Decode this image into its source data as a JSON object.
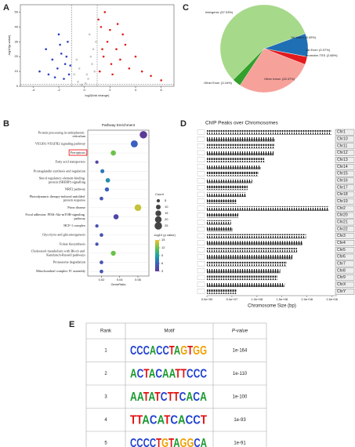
{
  "panel_labels": [
    "A",
    "B",
    "C",
    "D",
    "E"
  ],
  "chart_data": [
    {
      "type": "scatter",
      "x_label": "log2(fold change)",
      "y_label": "-log10(p-value)",
      "xlim": [
        -5,
        7
      ],
      "xticks": [
        -4,
        -2,
        0,
        2,
        4,
        6
      ],
      "ylim": [
        0,
        55
      ],
      "yticks": [
        0,
        10,
        20,
        30,
        40,
        50
      ],
      "vlines": [
        -1,
        1
      ],
      "hlines": [
        1.3
      ],
      "series": [
        {
          "color": "#c8c8c8",
          "x": [
            -0.5,
            0.3,
            0.8,
            -0.2,
            0.5,
            0.9,
            -0.8,
            0.1,
            0.6,
            -0.4,
            0.2,
            0.7,
            -0.6,
            0.4
          ],
          "y": [
            3,
            5,
            10,
            1,
            20,
            30,
            8,
            2,
            15,
            12,
            8,
            25,
            18,
            35
          ]
        },
        {
          "color": "#2a3fbf",
          "x": [
            -1.2,
            -1.5,
            -1.8,
            -2.1,
            -2.5,
            -3,
            -1.3,
            -1.6,
            -2,
            -3.5,
            -1.4,
            -2.8,
            -1.1,
            -1.9,
            -2.3
          ],
          "y": [
            8,
            15,
            22,
            12,
            18,
            25,
            30,
            5,
            35,
            10,
            20,
            8,
            14,
            28,
            6
          ]
        },
        {
          "color": "#e0201c",
          "x": [
            1.2,
            1.5,
            1.8,
            2.1,
            2.5,
            3,
            3.5,
            4,
            1.3,
            1.6,
            2.2,
            2.8,
            4.5,
            5.2,
            1.1,
            3.2,
            2,
            1.4,
            6,
            2.6
          ],
          "y": [
            10,
            20,
            30,
            15,
            25,
            35,
            12,
            20,
            40,
            50,
            8,
            18,
            10,
            7,
            45,
            28,
            38,
            25,
            4,
            42
          ]
        }
      ]
    },
    {
      "type": "dot",
      "title": "Pathway Enrichment",
      "x_label": "GeneRatio",
      "categories": [
        "Protein processing in endoplasmic reticulum",
        "VEGFA-VEGFR2 signaling pathway",
        "Ferroptosis",
        "Fatty acid transporters",
        "Prostaglandin synthesis and regulation",
        "Sterol regulatory element-binding protein (SREBP) signalling",
        "NRF2 pathway",
        "Photodynamic therapy-induced unfolded protein response",
        "Prion disease",
        "Focal adhesion: PI3K-Akt-mTOR-signaling pathway",
        "HCF-1 complex",
        "Glycolysis and gluconeogenesis",
        "Folate biosynthesis",
        "Cholesterol metabolism with Bloch and Kandutsch-Russell pathways",
        "Proteasome degradation",
        "Mitochondrial complex IV assembly"
      ],
      "x": [
        0.066,
        0.056,
        0.033,
        0.015,
        0.021,
        0.027,
        0.026,
        0.02,
        0.06,
        0.036,
        0.015,
        0.02,
        0.015,
        0.033,
        0.02,
        0.02
      ],
      "counts": [
        25,
        22,
        12,
        5,
        7,
        9,
        8,
        6,
        20,
        12,
        5,
        6,
        5,
        11,
        6,
        6
      ],
      "values": [
        3,
        6,
        12,
        4,
        7,
        8,
        6,
        5,
        14,
        4,
        5,
        5,
        5,
        12,
        5,
        5
      ],
      "xlim": [
        0.005,
        0.072
      ],
      "xticks": [
        0.02,
        0.04,
        0.06
      ],
      "size_legend_title": "Count",
      "size_legend": [
        5,
        10,
        15,
        20,
        25
      ],
      "color_legend_title": "-log10 (p value)",
      "clim": [
        3,
        15
      ],
      "color_ticks": [
        15,
        12,
        9,
        6,
        3
      ],
      "colors": [
        "#5b3a98",
        "#3a5fc2",
        "#1aa3a3",
        "#6cc24a",
        "#f0c330"
      ]
    },
    {
      "type": "pie",
      "categories": [
        "1st Intron",
        "1st Exon",
        "promoter-TSS",
        "Other Intron",
        "Other Exon",
        "Intergenic"
      ],
      "values": [
        8.49,
        0.07,
        2.88,
        28.37,
        3.16,
        57.03
      ],
      "value_labels": [
        "(8.49%)",
        "(0.07%)",
        "(2.88%)",
        "(28.37%)",
        "(3.16%)",
        "(57.03%)"
      ],
      "colors": [
        "#1f6fb4",
        "#ff7f00",
        "#e31a1c",
        "#f7a19b",
        "#33a02c",
        "#a6d98a"
      ]
    },
    {
      "type": "ideogram",
      "title": "ChIP Peaks over Chromosomes",
      "x_label": "Chromosome Size (bp)",
      "categories": [
        "Chr1",
        "Chr10",
        "Chr11",
        "Chr12",
        "Chr13",
        "Chr14",
        "Chr15",
        "Chr16",
        "Chr17",
        "Chr18",
        "Chr19",
        "Chr2",
        "Chr20",
        "Chr21",
        "Chr22",
        "Chr3",
        "Chr4",
        "Chr5",
        "Chr6",
        "Chr7",
        "Chr8",
        "Chr9",
        "ChrX",
        "ChrY"
      ],
      "values": [
        249000000,
        135500000,
        135000000,
        133900000,
        115200000,
        107300000,
        102500000,
        90400000,
        81200000,
        78100000,
        59100000,
        243200000,
        63000000,
        48100000,
        51300000,
        198000000,
        191200000,
        180900000,
        171100000,
        159100000,
        146400000,
        141200000,
        155300000,
        59400000
      ],
      "xlim": [
        0,
        260000000
      ],
      "xticks": [
        {
          "value": 0,
          "label": "0.0e+00"
        },
        {
          "value": 50000000,
          "label": "5.0e+07"
        },
        {
          "value": 100000000,
          "label": "1.0e+08"
        },
        {
          "value": 150000000,
          "label": "1.5e+08"
        },
        {
          "value": 200000000,
          "label": "2.0e+08"
        },
        {
          "value": 250000000,
          "label": "2.5e+08"
        }
      ]
    }
  ],
  "table": {
    "headers": [
      "Rank",
      "Motif",
      "P-value"
    ],
    "rows": [
      [
        "1",
        "CCCACCTAGTGG",
        "1e-164"
      ],
      [
        "2",
        "ACTACAATTCCC",
        "1e-110"
      ],
      [
        "3",
        "AATATCTTCACA",
        "1e-100"
      ],
      [
        "4",
        "TTACATCACCT",
        "1e-93"
      ],
      [
        "5",
        "CCCCTGTAGGCA",
        "1e-91"
      ]
    ]
  }
}
